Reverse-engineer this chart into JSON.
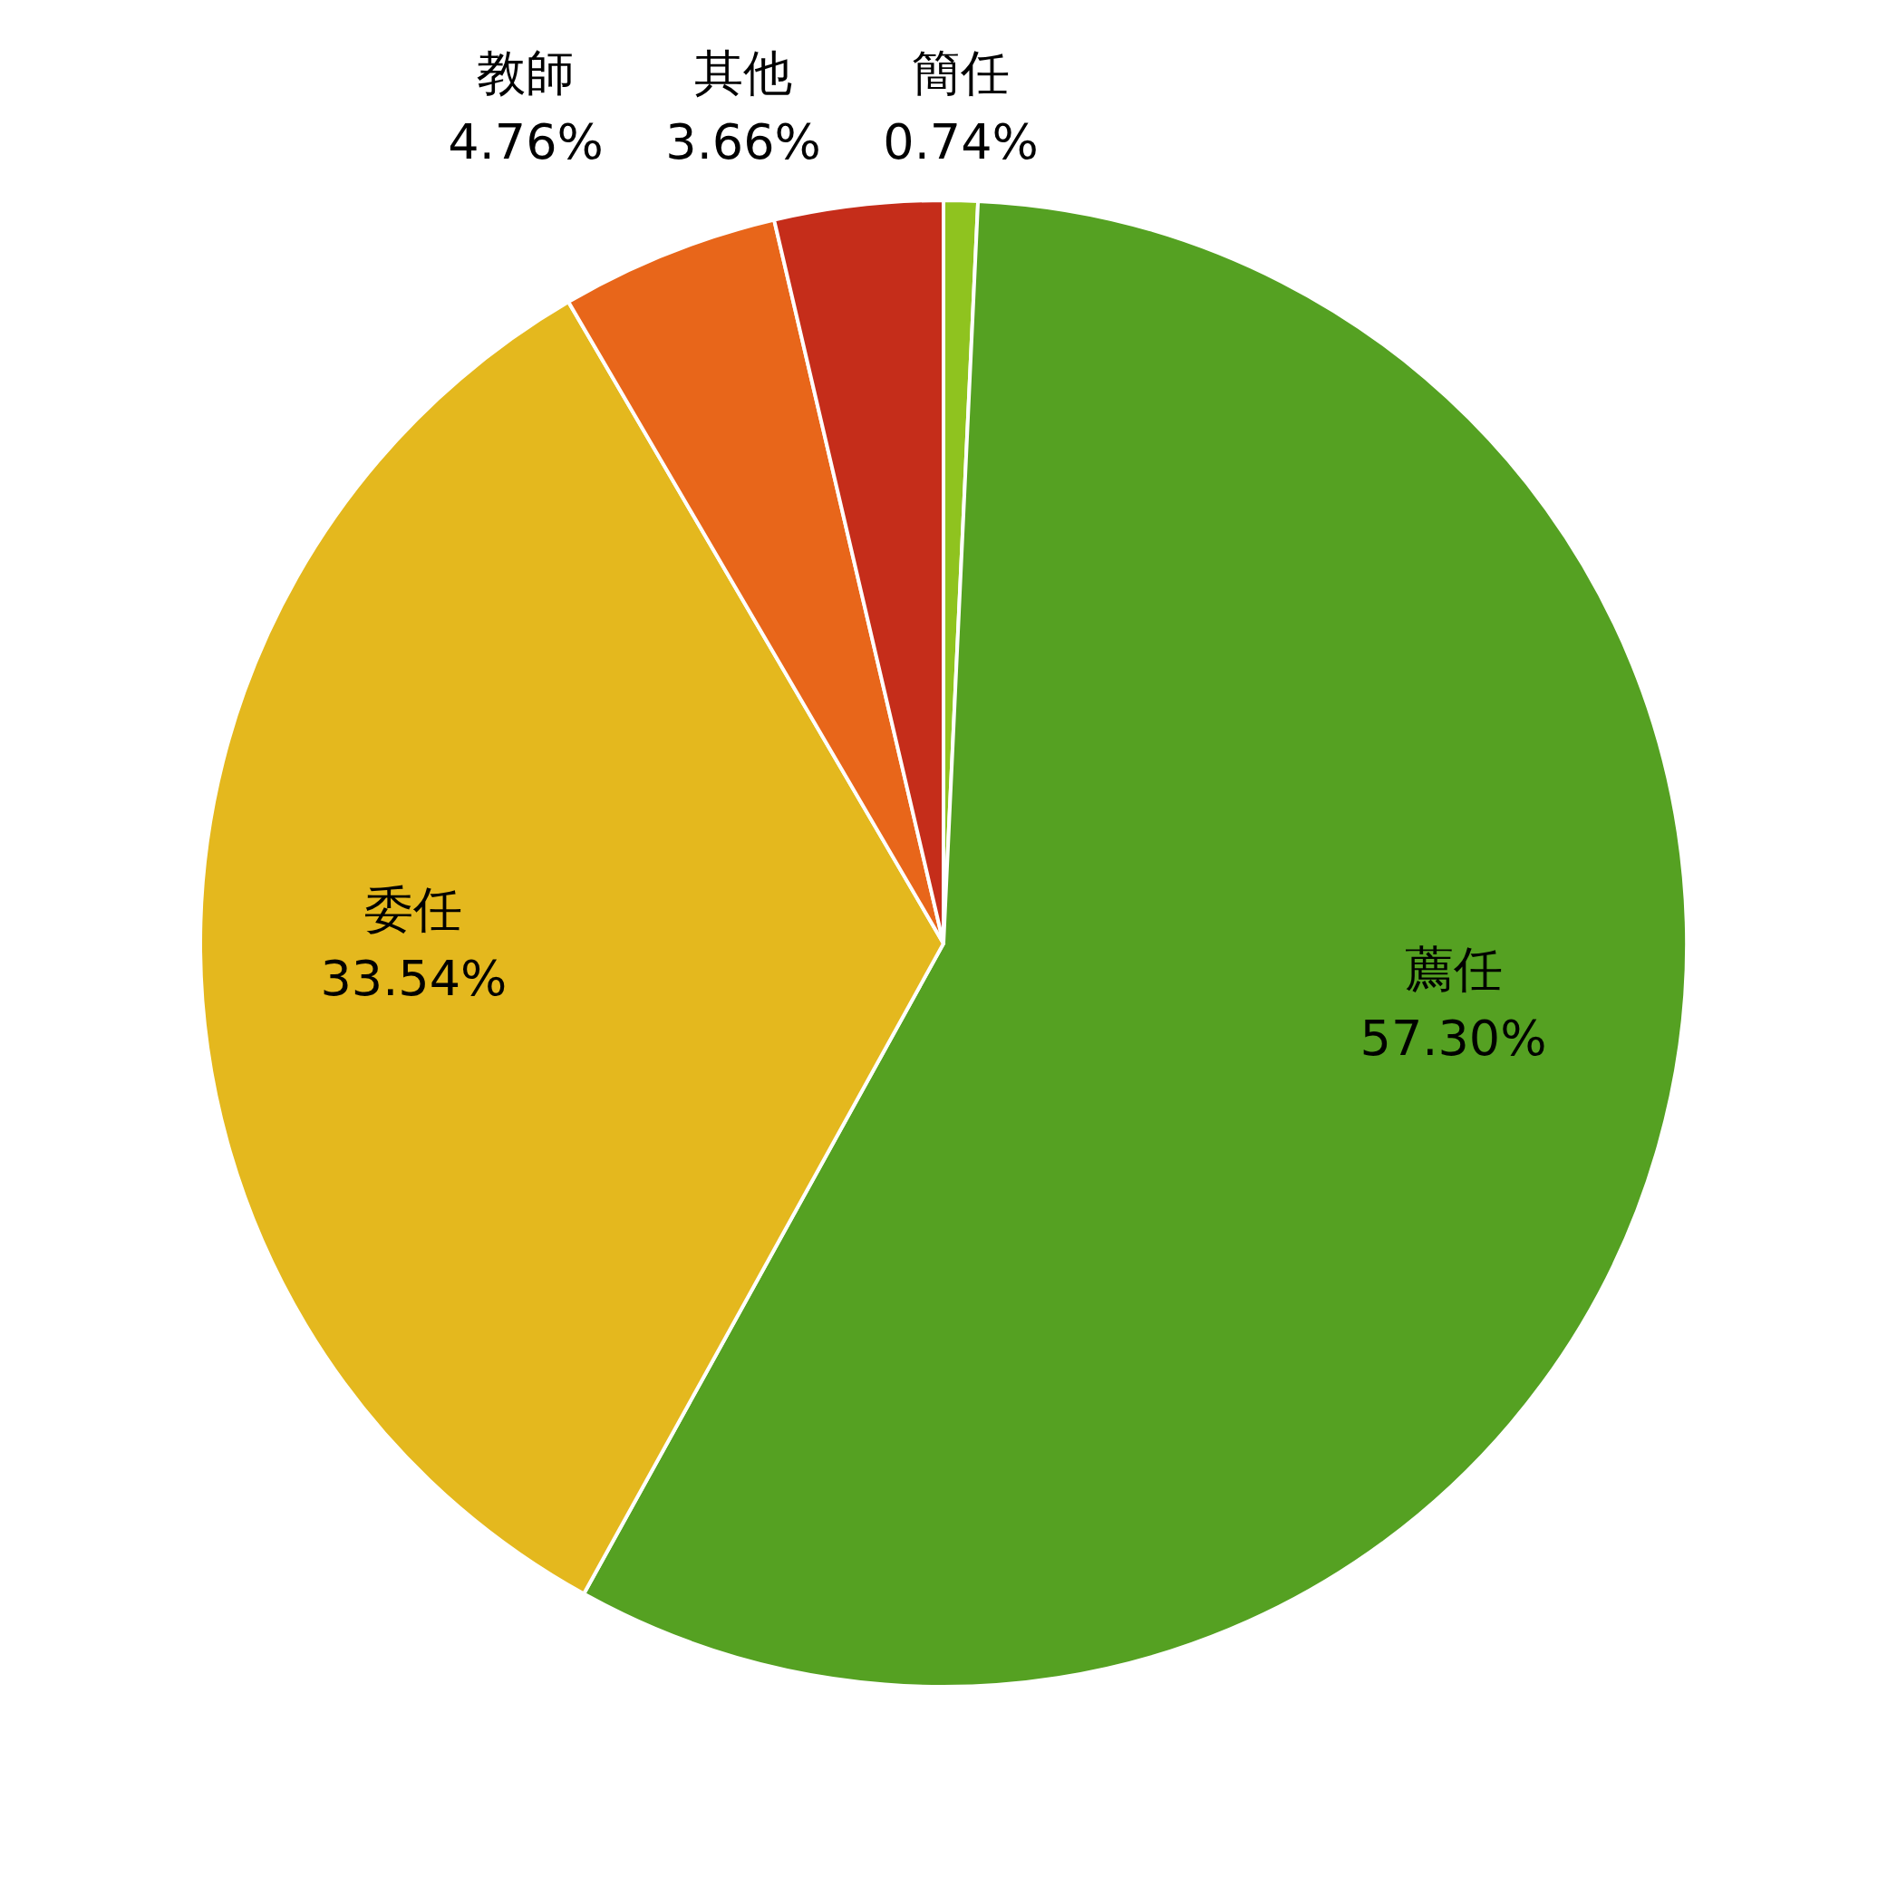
{
  "chart_data": {
    "type": "pie",
    "categories": [
      "簡任",
      "薦任",
      "委任",
      "教師",
      "其他"
    ],
    "values": [
      0.74,
      57.3,
      33.54,
      4.76,
      3.66
    ],
    "colors": [
      "#8fc31f",
      "#55a122",
      "#e4b81e",
      "#e8661a",
      "#c52d1a"
    ],
    "value_labels": [
      "0.74%",
      "57.30%",
      "33.54%",
      "4.76%",
      "3.66%"
    ]
  }
}
